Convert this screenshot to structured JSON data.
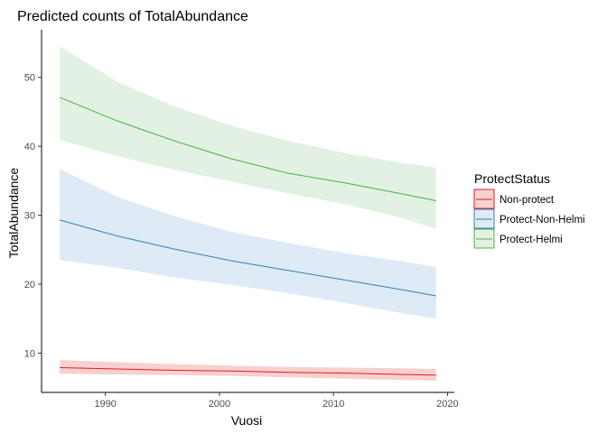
{
  "chart_data": {
    "type": "line",
    "title": "Predicted counts of TotalAbundance",
    "xlabel": "Vuosi",
    "ylabel": "TotalAbundance",
    "xlim": [
      1984.4,
      2020.6
    ],
    "ylim": [
      4.3,
      56.9
    ],
    "x_ticks": [
      1990,
      2000,
      2010,
      2020
    ],
    "y_ticks": [
      10,
      20,
      30,
      40,
      50
    ],
    "grid": false,
    "legend": {
      "title": "ProtectStatus",
      "position": "right"
    },
    "x": [
      1986,
      1991,
      1996,
      2001,
      2006,
      2011,
      2016,
      2019
    ],
    "series": [
      {
        "name": "Non-protect",
        "color": "#e41a1c",
        "fill": "#f8d0d0",
        "values": [
          7.9,
          7.7,
          7.5,
          7.4,
          7.2,
          7.1,
          6.9,
          6.8
        ],
        "lower": [
          7.0,
          6.9,
          6.8,
          6.7,
          6.5,
          6.3,
          6.1,
          6.0
        ],
        "upper": [
          9.0,
          8.7,
          8.4,
          8.2,
          8.0,
          7.9,
          7.8,
          7.7
        ]
      },
      {
        "name": "Protect-Non-Helmi",
        "color": "#377eb8",
        "fill": "#deeaf5",
        "values": [
          29.3,
          27.0,
          25.1,
          23.4,
          22.0,
          20.6,
          19.2,
          18.3
        ],
        "lower": [
          23.5,
          22.4,
          21.0,
          19.9,
          18.7,
          17.3,
          15.8,
          15.0
        ],
        "upper": [
          36.7,
          32.7,
          29.9,
          27.6,
          26.0,
          24.5,
          23.3,
          22.5
        ]
      },
      {
        "name": "Protect-Helmi",
        "color": "#4daf4a",
        "fill": "#e2f1e1",
        "values": [
          47.1,
          43.7,
          40.8,
          38.2,
          36.1,
          34.7,
          33.1,
          32.1
        ],
        "lower": [
          40.9,
          38.6,
          36.6,
          34.9,
          33.2,
          31.6,
          29.6,
          28.0
        ],
        "upper": [
          54.5,
          49.4,
          45.8,
          43.0,
          40.8,
          39.0,
          37.6,
          36.9
        ]
      }
    ]
  }
}
